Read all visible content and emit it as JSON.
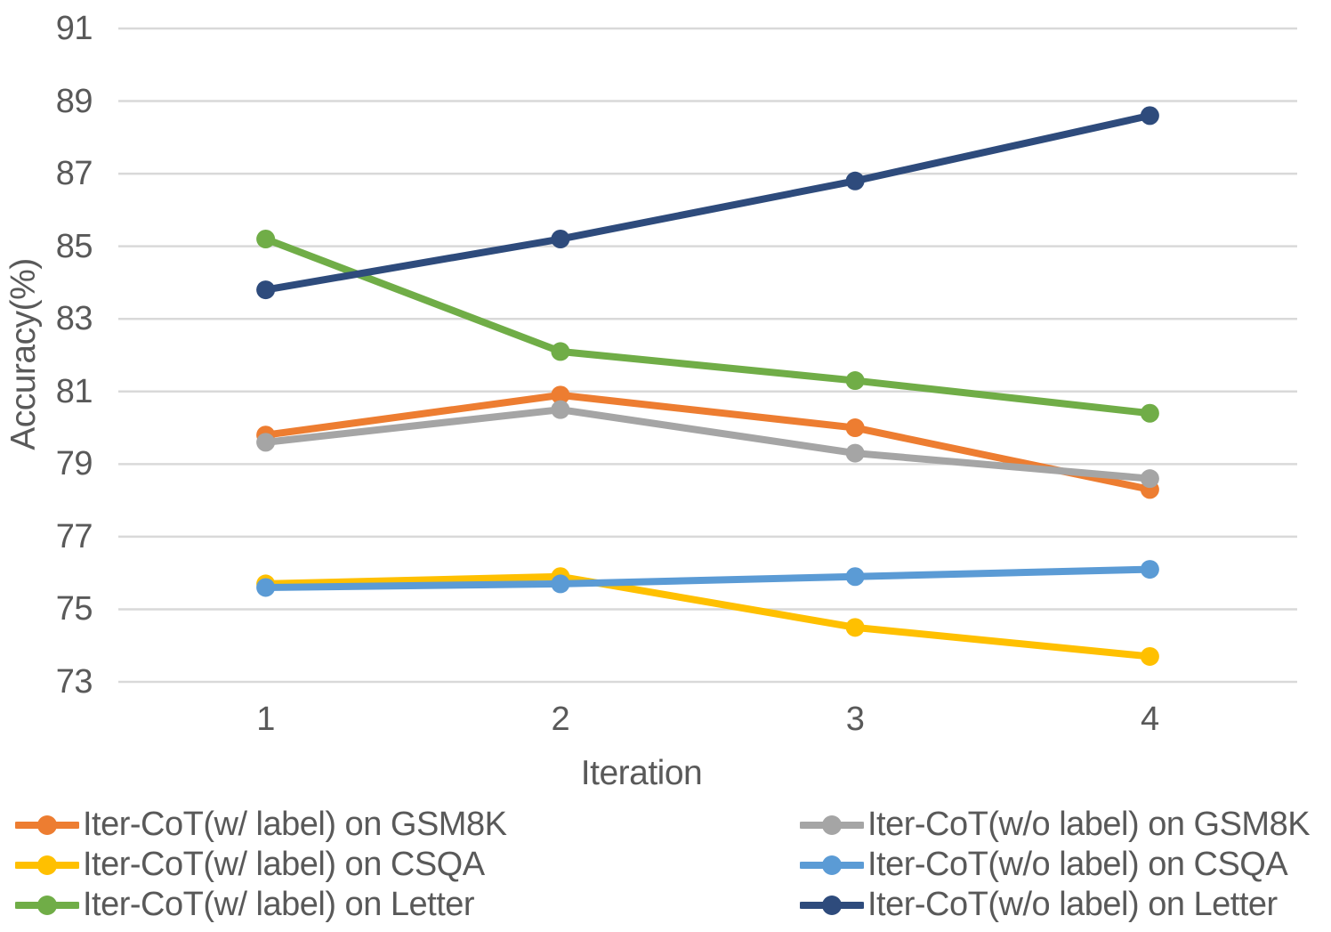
{
  "chart_data": {
    "type": "line",
    "title": "",
    "xlabel": "Iteration",
    "ylabel": "Accuracy(%)",
    "x_categories": [
      "1",
      "2",
      "3",
      "4"
    ],
    "y_ticks": [
      "91",
      "89",
      "87",
      "85",
      "83",
      "81",
      "79",
      "77",
      "75",
      "73"
    ],
    "ylim": [
      73,
      91
    ],
    "grid": "horizontal-only",
    "legend_position": "bottom, two columns",
    "marker_style": "circle",
    "series": [
      {
        "name": "Iter-CoT(w/ label) on GSM8K",
        "color": "#ED7D31",
        "values": [
          79.8,
          80.9,
          80.0,
          78.3
        ]
      },
      {
        "name": "Iter-CoT(w/ label) on CSQA",
        "color": "#FFC000",
        "values": [
          75.7,
          75.9,
          74.5,
          73.7
        ]
      },
      {
        "name": "Iter-CoT(w/ label) on Letter",
        "color": "#70AD47",
        "values": [
          85.2,
          82.1,
          81.3,
          80.4
        ]
      },
      {
        "name": "Iter-CoT(w/o label) on GSM8K",
        "color": "#A5A5A5",
        "values": [
          79.6,
          80.5,
          79.3,
          78.6
        ]
      },
      {
        "name": "Iter-CoT(w/o label) on CSQA",
        "color": "#5B9BD5",
        "values": [
          75.6,
          75.7,
          75.9,
          76.1
        ]
      },
      {
        "name": "Iter-CoT(w/o label) on Letter",
        "color": "#2E4B7C",
        "values": [
          83.8,
          85.2,
          86.8,
          88.6
        ]
      }
    ],
    "colors": {
      "background": "#FFFFFF",
      "gridline": "#D9D9D9",
      "text": "#595959"
    }
  }
}
